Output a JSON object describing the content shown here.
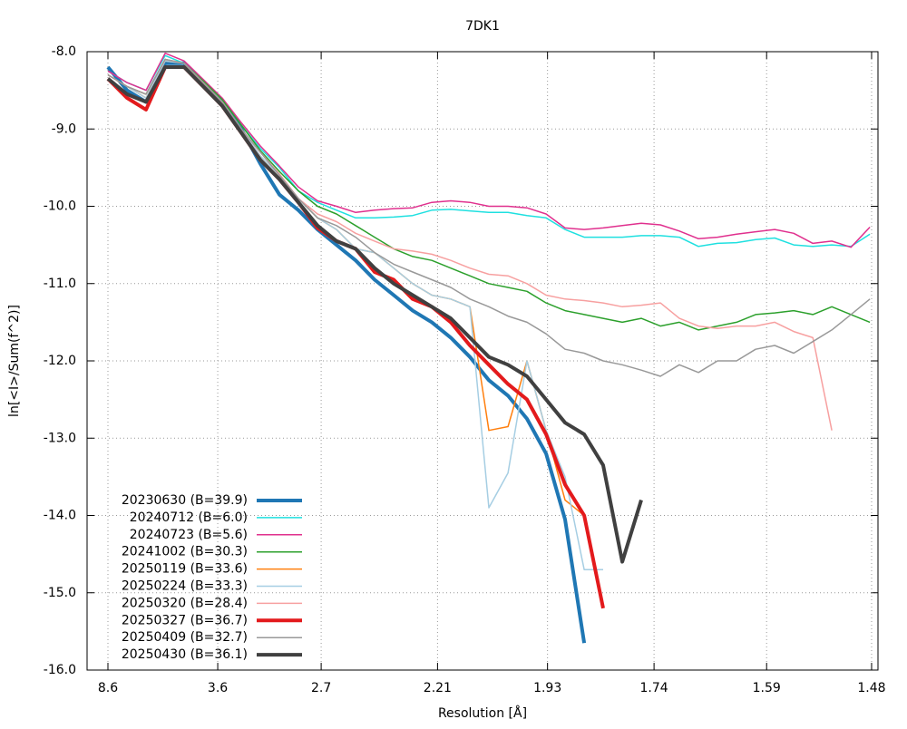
{
  "chart_data": {
    "type": "line",
    "title": "7DK1",
    "x_label": "Resolution [Å]",
    "y_label": "ln[<I>/Sum(f^2)]",
    "xlim": [
      0.0014,
      0.4602
    ],
    "ylim": [
      -16,
      -8
    ],
    "xticks": [
      {
        "value": 0.0135,
        "label": "8.6"
      },
      {
        "value": 0.0772,
        "label": "3.6"
      },
      {
        "value": 0.1372,
        "label": "2.7"
      },
      {
        "value": 0.2047,
        "label": "2.21"
      },
      {
        "value": 0.2685,
        "label": "1.93"
      },
      {
        "value": 0.3303,
        "label": "1.74"
      },
      {
        "value": 0.3956,
        "label": "1.59"
      },
      {
        "value": 0.4565,
        "label": "1.48"
      }
    ],
    "yticks": [
      {
        "value": -16,
        "label": "-16.0"
      },
      {
        "value": -15,
        "label": "-15.0"
      },
      {
        "value": -14,
        "label": "-14.0"
      },
      {
        "value": -13,
        "label": "-13.0"
      },
      {
        "value": -12,
        "label": "-12.0"
      },
      {
        "value": -11,
        "label": "-11.0"
      },
      {
        "value": -10,
        "label": "-10.0"
      },
      {
        "value": -9,
        "label": "-9.0"
      },
      {
        "value": -8,
        "label": "-8.0"
      }
    ],
    "grid": true,
    "legend": "bottom-left",
    "x": [
      0.0135,
      0.0246,
      0.0356,
      0.0467,
      0.0577,
      0.0688,
      0.0798,
      0.0909,
      0.1019,
      0.113,
      0.124,
      0.1351,
      0.1461,
      0.1572,
      0.1682,
      0.1793,
      0.1903,
      0.2014,
      0.2124,
      0.2235,
      0.2345,
      0.2456,
      0.2566,
      0.2677,
      0.2787,
      0.2898,
      0.3008,
      0.3119,
      0.3229,
      0.334,
      0.345,
      0.3561,
      0.3671,
      0.3782,
      0.3892,
      0.4003,
      0.4113,
      0.4224,
      0.4334,
      0.4445,
      0.4555
    ],
    "series": [
      {
        "name": "20230630 (B=39.9)",
        "color": "#1f77b4",
        "width": 4,
        "values": [
          -8.2,
          -8.5,
          -8.65,
          -8.15,
          -8.15,
          -8.4,
          -8.65,
          -9.0,
          -9.45,
          -9.85,
          -10.05,
          -10.3,
          -10.5,
          -10.7,
          -10.95,
          -11.15,
          -11.35,
          -11.5,
          -11.7,
          -11.95,
          -12.25,
          -12.45,
          -12.75,
          -13.2,
          -14.05,
          -15.65,
          null,
          null,
          null,
          null,
          null,
          null,
          null,
          null,
          null,
          null,
          null,
          null,
          null,
          null,
          null
        ]
      },
      {
        "name": "20240712 (B=6.0)",
        "color": "#1fe0e0",
        "width": 1.5,
        "values": [
          -8.25,
          -8.4,
          -8.5,
          -8.05,
          -8.15,
          -8.38,
          -8.62,
          -8.95,
          -9.25,
          -9.5,
          -9.8,
          -9.95,
          -10.05,
          -10.15,
          -10.15,
          -10.14,
          -10.12,
          -10.05,
          -10.04,
          -10.06,
          -10.08,
          -10.08,
          -10.12,
          -10.15,
          -10.3,
          -10.4,
          -10.4,
          -10.4,
          -10.38,
          -10.38,
          -10.4,
          -10.52,
          -10.48,
          -10.47,
          -10.43,
          -10.41,
          -10.5,
          -10.52,
          -10.5,
          -10.52,
          -10.36
        ]
      },
      {
        "name": "20240723 (B=5.6)",
        "color": "#e0308e",
        "width": 1.5,
        "values": [
          -8.25,
          -8.4,
          -8.5,
          -8.02,
          -8.12,
          -8.36,
          -8.6,
          -8.92,
          -9.22,
          -9.48,
          -9.75,
          -9.93,
          -10.0,
          -10.08,
          -10.05,
          -10.03,
          -10.02,
          -9.95,
          -9.93,
          -9.95,
          -10.0,
          -10.0,
          -10.02,
          -10.1,
          -10.28,
          -10.3,
          -10.28,
          -10.25,
          -10.22,
          -10.24,
          -10.32,
          -10.42,
          -10.4,
          -10.36,
          -10.33,
          -10.3,
          -10.35,
          -10.48,
          -10.45,
          -10.53,
          -10.27
        ]
      },
      {
        "name": "20241002 (B=30.3)",
        "color": "#2ca02c",
        "width": 1.5,
        "values": [
          -8.3,
          -8.45,
          -8.55,
          -8.1,
          -8.15,
          -8.38,
          -8.62,
          -8.95,
          -9.28,
          -9.55,
          -9.8,
          -10.0,
          -10.1,
          -10.25,
          -10.4,
          -10.55,
          -10.65,
          -10.7,
          -10.8,
          -10.9,
          -11.0,
          -11.05,
          -11.1,
          -11.25,
          -11.35,
          -11.4,
          -11.45,
          -11.5,
          -11.45,
          -11.55,
          -11.5,
          -11.6,
          -11.55,
          -11.5,
          -11.4,
          -11.38,
          -11.35,
          -11.4,
          -11.3,
          -11.4,
          -11.5
        ]
      },
      {
        "name": "20250119 (B=33.6)",
        "color": "#ff7f0e",
        "width": 1.5,
        "values": [
          -8.3,
          -8.45,
          -8.6,
          -8.12,
          -8.15,
          -8.4,
          -8.65,
          -9.0,
          -9.35,
          -9.6,
          -9.9,
          -10.15,
          -10.3,
          -10.55,
          -10.6,
          -10.8,
          -11.0,
          -11.15,
          -11.2,
          -11.3,
          -12.9,
          -12.85,
          -12.0,
          -12.9,
          -13.8,
          -14.0,
          -15.2,
          null,
          null,
          null,
          null,
          null,
          null,
          null,
          null,
          null,
          null,
          null,
          null,
          null,
          null
        ]
      },
      {
        "name": "20250224 (B=33.3)",
        "color": "#a6cee3",
        "width": 1.5,
        "values": [
          -8.3,
          -8.45,
          -8.6,
          -8.12,
          -8.15,
          -8.4,
          -8.65,
          -9.0,
          -9.35,
          -9.6,
          -9.9,
          -10.15,
          -10.3,
          -10.55,
          -10.6,
          -10.8,
          -11.0,
          -11.15,
          -11.2,
          -11.3,
          -13.9,
          -13.45,
          -12.0,
          -12.9,
          -13.5,
          -14.7,
          -14.7,
          null,
          null,
          null,
          null,
          null,
          null,
          null,
          null,
          null,
          null,
          null,
          null,
          null,
          null
        ]
      },
      {
        "name": "20250320 (B=28.4)",
        "color": "#f7a0a0",
        "width": 1.5,
        "values": [
          -8.3,
          -8.45,
          -8.55,
          -8.1,
          -8.15,
          -8.4,
          -8.65,
          -9.0,
          -9.3,
          -9.58,
          -9.9,
          -10.1,
          -10.2,
          -10.35,
          -10.45,
          -10.55,
          -10.58,
          -10.62,
          -10.7,
          -10.8,
          -10.88,
          -10.9,
          -11.0,
          -11.15,
          -11.2,
          -11.22,
          -11.25,
          -11.3,
          -11.28,
          -11.25,
          -11.45,
          -11.55,
          -11.58,
          -11.55,
          -11.55,
          -11.5,
          -11.62,
          -11.7,
          -12.9,
          null,
          null
        ]
      },
      {
        "name": "20250327 (B=36.7)",
        "color": "#e31a1c",
        "width": 4,
        "values": [
          -8.35,
          -8.6,
          -8.75,
          -8.2,
          -8.2,
          -8.45,
          -8.7,
          -9.05,
          -9.4,
          -9.65,
          -9.95,
          -10.28,
          -10.45,
          -10.55,
          -10.85,
          -10.95,
          -11.2,
          -11.3,
          -11.5,
          -11.8,
          -12.05,
          -12.3,
          -12.5,
          -12.95,
          -13.6,
          -14.0,
          -15.2,
          null,
          null,
          null,
          null,
          null,
          null,
          null,
          null,
          null,
          null,
          null,
          null,
          null,
          null
        ]
      },
      {
        "name": "20250409 (B=32.7)",
        "color": "#999999",
        "width": 1.5,
        "values": [
          -8.3,
          -8.45,
          -8.55,
          -8.1,
          -8.15,
          -8.4,
          -8.65,
          -9.0,
          -9.3,
          -9.6,
          -9.9,
          -10.15,
          -10.25,
          -10.4,
          -10.6,
          -10.75,
          -10.85,
          -10.95,
          -11.05,
          -11.2,
          -11.3,
          -11.42,
          -11.5,
          -11.65,
          -11.85,
          -11.9,
          -12.0,
          -12.05,
          -12.12,
          -12.2,
          -12.05,
          -12.15,
          -12.0,
          -12.0,
          -11.85,
          -11.8,
          -11.9,
          -11.75,
          -11.6,
          -11.4,
          -11.2
        ]
      },
      {
        "name": "20250430 (B=36.1)",
        "color": "#404040",
        "width": 4,
        "values": [
          -8.35,
          -8.55,
          -8.65,
          -8.2,
          -8.2,
          -8.45,
          -8.7,
          -9.05,
          -9.4,
          -9.65,
          -9.95,
          -10.25,
          -10.45,
          -10.55,
          -10.8,
          -11.0,
          -11.15,
          -11.3,
          -11.45,
          -11.7,
          -11.95,
          -12.05,
          -12.2,
          -12.5,
          -12.8,
          -12.95,
          -13.35,
          -14.6,
          -13.8,
          null,
          null,
          null,
          null,
          null,
          null,
          null,
          null,
          null,
          null,
          null,
          null
        ]
      }
    ]
  }
}
